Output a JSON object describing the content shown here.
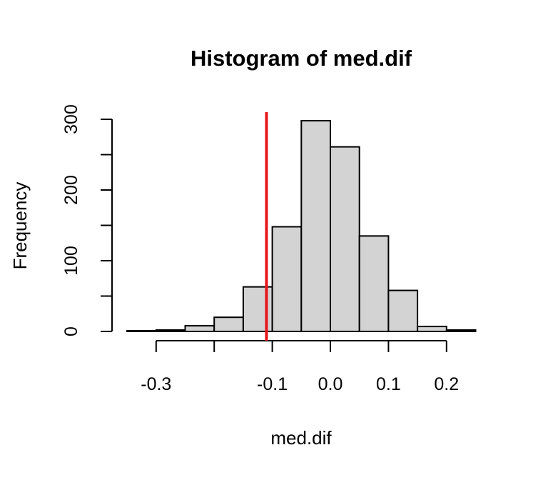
{
  "chart_data": {
    "type": "bar",
    "title": "Histogram of med.dif",
    "xlabel": "med.dif",
    "ylabel": "Frequency",
    "bins": [
      {
        "x0": -0.35,
        "x1": -0.3,
        "count": 1
      },
      {
        "x0": -0.3,
        "x1": -0.25,
        "count": 2
      },
      {
        "x0": -0.25,
        "x1": -0.2,
        "count": 8
      },
      {
        "x0": -0.2,
        "x1": -0.15,
        "count": 20
      },
      {
        "x0": -0.15,
        "x1": -0.1,
        "count": 63
      },
      {
        "x0": -0.1,
        "x1": -0.05,
        "count": 148
      },
      {
        "x0": -0.05,
        "x1": 0.0,
        "count": 298
      },
      {
        "x0": 0.0,
        "x1": 0.05,
        "count": 261
      },
      {
        "x0": 0.05,
        "x1": 0.1,
        "count": 135
      },
      {
        "x0": 0.1,
        "x1": 0.15,
        "count": 58
      },
      {
        "x0": 0.15,
        "x1": 0.2,
        "count": 7
      },
      {
        "x0": 0.2,
        "x1": 0.25,
        "count": 2
      }
    ],
    "x_ticks": [
      -0.3,
      -0.2,
      -0.1,
      0.0,
      0.1,
      0.2
    ],
    "x_tick_labels": [
      "-0.3",
      "",
      "-0.1",
      "0.0",
      "0.1",
      "0.2"
    ],
    "y_ticks": [
      0,
      50,
      100,
      150,
      200,
      250,
      300
    ],
    "y_tick_labels": [
      "0",
      "",
      "100",
      "",
      "200",
      "",
      "300"
    ],
    "xlim": [
      -0.35,
      0.25
    ],
    "ylim": [
      0,
      310
    ],
    "reference_line": {
      "x": -0.11,
      "color": "#e8161b"
    },
    "bar_fill": "#d3d3d3",
    "bar_stroke": "#000000",
    "grid": false
  }
}
